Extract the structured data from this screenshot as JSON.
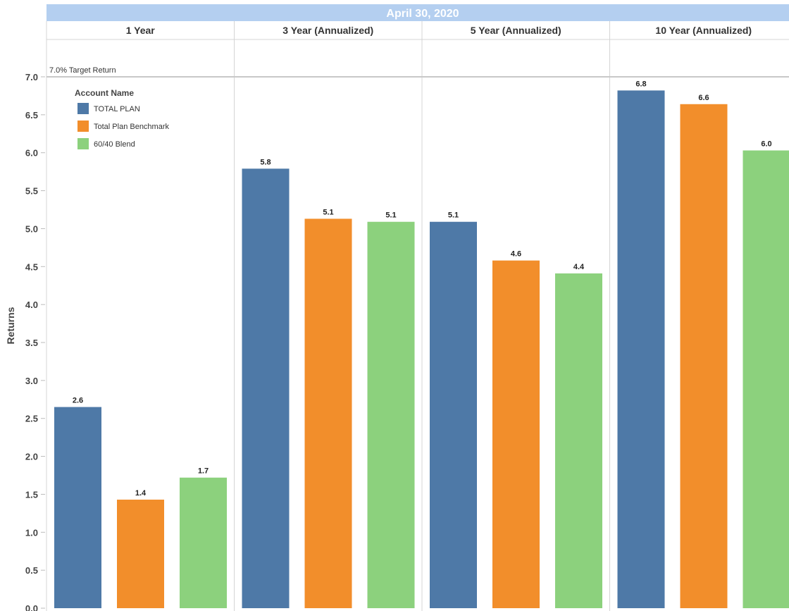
{
  "chart_data": {
    "type": "bar",
    "title": "April 30, 2020",
    "ylabel": "Returns",
    "ylim": [
      0,
      7.0
    ],
    "yticks": [
      "0.0",
      "0.5",
      "1.0",
      "1.5",
      "2.0",
      "2.5",
      "3.0",
      "3.5",
      "4.0",
      "4.5",
      "5.0",
      "5.5",
      "6.0",
      "6.5",
      "7.0"
    ],
    "target": {
      "value": 7.0,
      "label": "7.0% Target Return"
    },
    "legend": {
      "title": "Account Name",
      "placement": "top-left"
    },
    "grid": false,
    "categories": [
      "1 Year",
      "3 Year (Annualized)",
      "5 Year (Annualized)",
      "10 Year (Annualized)"
    ],
    "series": [
      {
        "name": "TOTAL PLAN",
        "color": "#4e79a7",
        "values": [
          2.6,
          5.8,
          5.1,
          6.8
        ]
      },
      {
        "name": "Total Plan Benchmark",
        "color": "#f28e2b",
        "values": [
          1.4,
          5.1,
          4.6,
          6.6
        ]
      },
      {
        "name": "60/40 Blend",
        "color": "#8cd17d",
        "values": [
          1.7,
          5.1,
          4.4,
          6.0
        ]
      }
    ],
    "plot_values": [
      [
        2.65,
        5.79,
        5.09,
        6.82
      ],
      [
        1.43,
        5.13,
        4.58,
        6.64
      ],
      [
        1.72,
        5.09,
        4.41,
        6.03
      ]
    ]
  },
  "colors": {
    "title_band": "#b4cff0",
    "divider": "#d4d4d4"
  }
}
